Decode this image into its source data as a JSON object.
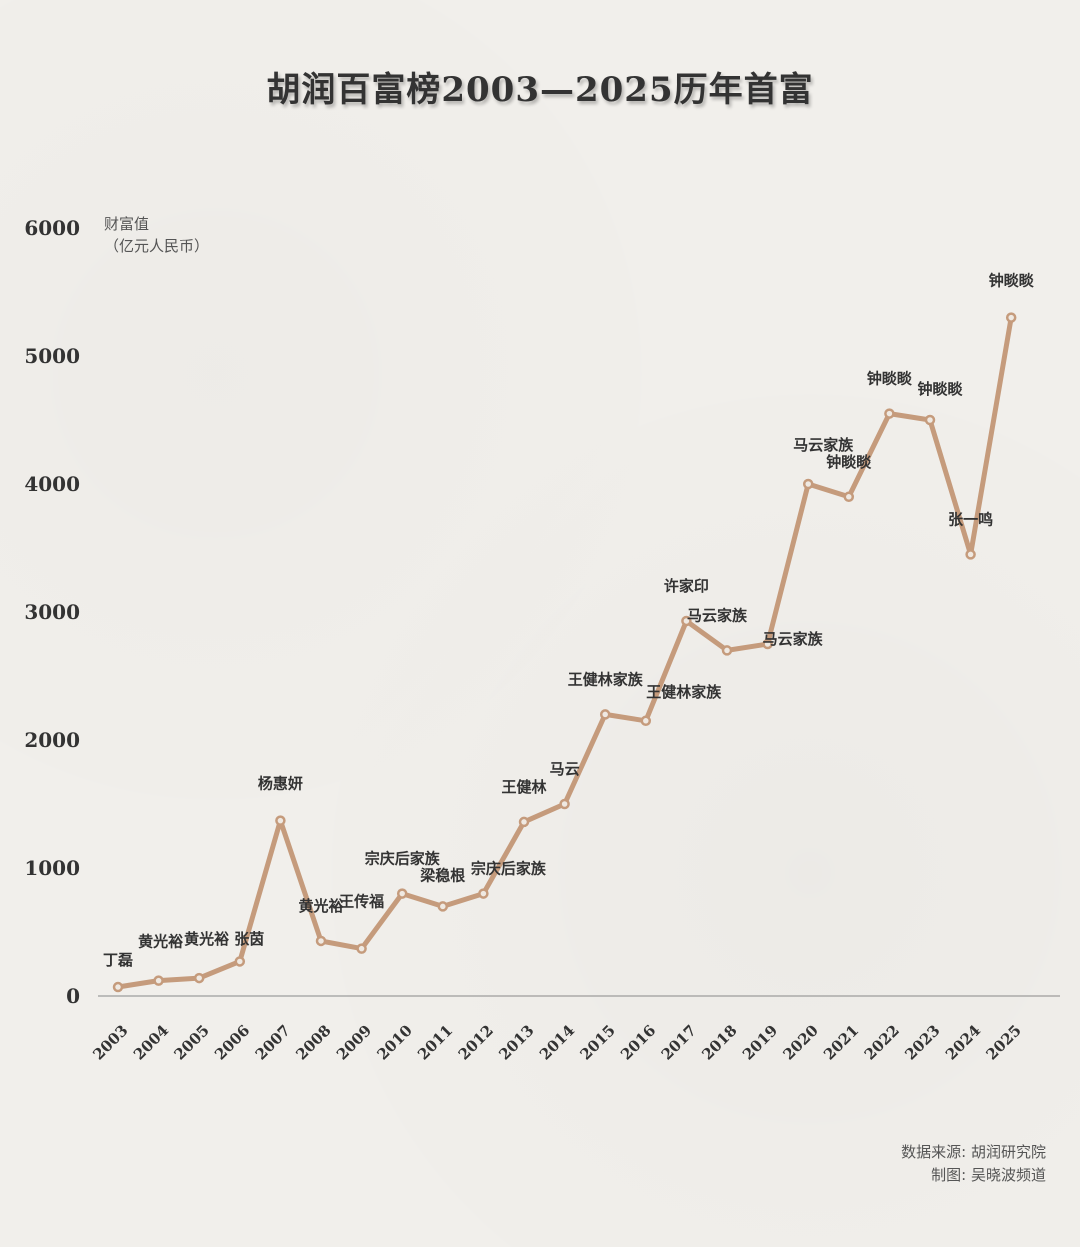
{
  "title": "胡润百富榜2003—2025历年首富",
  "unit_line1": "财富值",
  "unit_line2": "（亿元人民币）",
  "source_line1": "数据来源: 胡润研究院",
  "source_line2": "制图: 吴晓波频道",
  "colors": {
    "line": "#c59b7c",
    "background": "#f1efeb",
    "text": "#333333"
  },
  "chart_data": {
    "type": "line",
    "title": "胡润百富榜2003—2025历年首富",
    "ylabel": "财富值（亿元人民币）",
    "xlabel": "",
    "ylim": [
      0,
      6000
    ],
    "yticks": [
      0,
      1000,
      2000,
      3000,
      4000,
      5000,
      6000
    ],
    "grid": false,
    "x": [
      "2003",
      "2004",
      "2005",
      "2006",
      "2007",
      "2008",
      "2009",
      "2010",
      "2011",
      "2012",
      "2013",
      "2014",
      "2015",
      "2016",
      "2017",
      "2018",
      "2019",
      "2020",
      "2021",
      "2022",
      "2023",
      "2024",
      "2025"
    ],
    "series": [
      {
        "values": [
          70,
          120,
          140,
          270,
          1370,
          430,
          370,
          800,
          700,
          800,
          1360,
          1500,
          2200,
          2150,
          2930,
          2700,
          2750,
          4000,
          3900,
          4550,
          4500,
          3450,
          5300
        ],
        "labels": [
          "丁磊",
          "黄光裕",
          "黄光裕 张茵",
          "",
          "杨惠妍",
          "黄光裕",
          "王传福",
          "宗庆后家族",
          "梁稳根",
          "宗庆后家族",
          "王健林",
          "马云",
          "王健林家族",
          "王健林家族",
          "许家印",
          "马云家族",
          "马云家族",
          "马云家族",
          "钟睒睒",
          "钟睒睒",
          "钟睒睒",
          "张一鸣",
          "钟睒睒"
        ]
      }
    ]
  }
}
